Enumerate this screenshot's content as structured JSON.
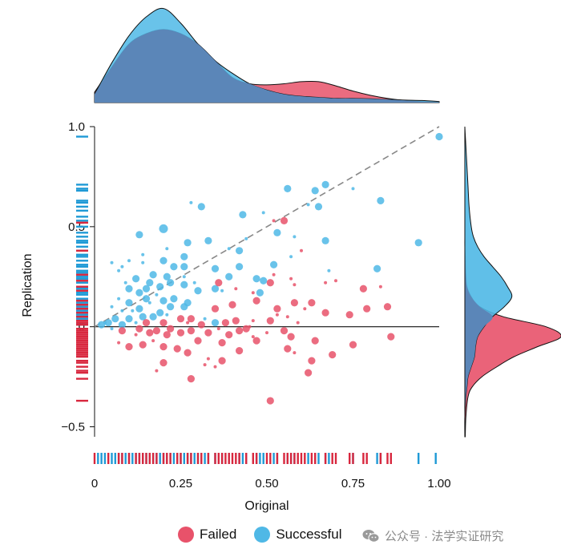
{
  "colors": {
    "failed": "#e8526a",
    "successful": "#4fb8e6",
    "overlap": "#5b86b8",
    "rug_failed": "#d8273e",
    "rug_successful": "#1f9ad6"
  },
  "legend": {
    "failed": "Failed",
    "successful": "Successful"
  },
  "watermark": {
    "icon": "wechat-icon",
    "text": "公众号 · 法学实证研究"
  },
  "chart_data": {
    "type": "scatter",
    "xlabel": "Original",
    "ylabel": "Replication",
    "xlim": [
      0,
      1
    ],
    "ylim": [
      -0.55,
      1.0
    ],
    "xticks": [
      {
        "value": 0,
        "label": "0"
      },
      {
        "value": 0.25,
        "label": "0.25"
      },
      {
        "value": 0.5,
        "label": "0.50"
      },
      {
        "value": 0.75,
        "label": "0.75"
      },
      {
        "value": 1,
        "label": "1.00"
      }
    ],
    "yticks": [
      {
        "value": -0.5,
        "label": "−0.5"
      },
      {
        "value": 0,
        "label": "0"
      },
      {
        "value": 0.5,
        "label": "0.5"
      },
      {
        "value": 1,
        "label": "1.0"
      }
    ],
    "reference_line": {
      "type": "identity",
      "style": "dashed",
      "from": [
        0,
        0
      ],
      "to": [
        1,
        1
      ]
    },
    "series": [
      {
        "name": "Successful",
        "points": [
          [
            1.0,
            0.95,
            6
          ],
          [
            0.67,
            0.71,
            6
          ],
          [
            0.64,
            0.68,
            5
          ],
          [
            0.56,
            0.69,
            6
          ],
          [
            0.83,
            0.63,
            6
          ],
          [
            0.75,
            0.69,
            3
          ],
          [
            0.62,
            0.61,
            3
          ],
          [
            0.65,
            0.6,
            2
          ],
          [
            0.31,
            0.6,
            6
          ],
          [
            0.28,
            0.62,
            3
          ],
          [
            0.49,
            0.57,
            3
          ],
          [
            0.43,
            0.56,
            6
          ],
          [
            0.2,
            0.49,
            7
          ],
          [
            0.13,
            0.46,
            6
          ],
          [
            0.27,
            0.42,
            6
          ],
          [
            0.94,
            0.42,
            6
          ],
          [
            0.67,
            0.43,
            6
          ],
          [
            0.58,
            0.45,
            3
          ],
          [
            0.53,
            0.47,
            6
          ],
          [
            0.44,
            0.44,
            3
          ],
          [
            0.42,
            0.38,
            6
          ],
          [
            0.33,
            0.43,
            6
          ],
          [
            0.39,
            0.39,
            3
          ],
          [
            0.26,
            0.35,
            6
          ],
          [
            0.21,
            0.39,
            3
          ],
          [
            0.14,
            0.36,
            3
          ],
          [
            0.08,
            0.3,
            3
          ],
          [
            0.1,
            0.33,
            3
          ],
          [
            0.05,
            0.32,
            3
          ],
          [
            0.2,
            0.33,
            6
          ],
          [
            0.14,
            0.32,
            3
          ],
          [
            0.23,
            0.3,
            6
          ],
          [
            0.26,
            0.3,
            6
          ],
          [
            0.35,
            0.29,
            6
          ],
          [
            0.42,
            0.3,
            6
          ],
          [
            0.47,
            0.24,
            6
          ],
          [
            0.52,
            0.31,
            6
          ],
          [
            0.39,
            0.25,
            6
          ],
          [
            0.17,
            0.26,
            6
          ],
          [
            0.21,
            0.25,
            6
          ],
          [
            0.26,
            0.25,
            3
          ],
          [
            0.12,
            0.24,
            6
          ],
          [
            0.16,
            0.22,
            6
          ],
          [
            0.19,
            0.2,
            6
          ],
          [
            0.22,
            0.22,
            6
          ],
          [
            0.26,
            0.21,
            6
          ],
          [
            0.29,
            0.22,
            3
          ],
          [
            0.3,
            0.18,
            6
          ],
          [
            0.35,
            0.19,
            6
          ],
          [
            0.37,
            0.18,
            3
          ],
          [
            0.49,
            0.23,
            6
          ],
          [
            0.48,
            0.17,
            6
          ],
          [
            0.1,
            0.19,
            6
          ],
          [
            0.13,
            0.17,
            6
          ],
          [
            0.15,
            0.19,
            6
          ],
          [
            0.18,
            0.16,
            3
          ],
          [
            0.2,
            0.13,
            6
          ],
          [
            0.23,
            0.14,
            6
          ],
          [
            0.27,
            0.12,
            6
          ],
          [
            0.07,
            0.14,
            3
          ],
          [
            0.1,
            0.12,
            6
          ],
          [
            0.15,
            0.14,
            6
          ],
          [
            0.16,
            0.12,
            3
          ],
          [
            0.22,
            0.1,
            6
          ],
          [
            0.26,
            0.1,
            6
          ],
          [
            0.05,
            0.1,
            3
          ],
          [
            0.08,
            0.08,
            3
          ],
          [
            0.11,
            0.08,
            3
          ],
          [
            0.13,
            0.09,
            6
          ],
          [
            0.19,
            0.07,
            6
          ],
          [
            0.21,
            0.06,
            3
          ],
          [
            0.17,
            0.05,
            6
          ],
          [
            0.14,
            0.05,
            6
          ],
          [
            0.1,
            0.04,
            6
          ],
          [
            0.06,
            0.04,
            6
          ],
          [
            0.04,
            0.02,
            6
          ],
          [
            0.02,
            0.01,
            6
          ],
          [
            0.08,
            0.01,
            6
          ],
          [
            0.12,
            0.02,
            3
          ],
          [
            0.05,
            -0.01,
            3
          ],
          [
            0.35,
            0.02,
            6
          ],
          [
            0.82,
            0.29,
            6
          ],
          [
            0.32,
            0.04,
            3
          ],
          [
            0.57,
            0.35,
            3
          ],
          [
            0.68,
            0.28,
            3
          ],
          [
            0.07,
            0.28,
            3
          ],
          [
            0.09,
            0.22,
            3
          ],
          [
            0.03,
            0.02,
            3
          ]
        ]
      },
      {
        "name": "Failed",
        "points": [
          [
            0.51,
            -0.37,
            6
          ],
          [
            0.28,
            -0.26,
            6
          ],
          [
            0.62,
            -0.23,
            6
          ],
          [
            0.2,
            -0.18,
            6
          ],
          [
            0.32,
            -0.19,
            3
          ],
          [
            0.37,
            -0.17,
            6
          ],
          [
            0.63,
            -0.17,
            6
          ],
          [
            0.69,
            -0.14,
            6
          ],
          [
            0.42,
            -0.12,
            6
          ],
          [
            0.56,
            -0.11,
            6
          ],
          [
            0.27,
            -0.13,
            6
          ],
          [
            0.24,
            -0.11,
            6
          ],
          [
            0.2,
            -0.1,
            6
          ],
          [
            0.14,
            -0.09,
            6
          ],
          [
            0.1,
            -0.1,
            6
          ],
          [
            0.07,
            -0.08,
            3
          ],
          [
            0.17,
            -0.07,
            3
          ],
          [
            0.3,
            -0.07,
            6
          ],
          [
            0.37,
            -0.08,
            6
          ],
          [
            0.47,
            -0.07,
            6
          ],
          [
            0.57,
            -0.05,
            6
          ],
          [
            0.64,
            -0.07,
            6
          ],
          [
            0.75,
            -0.09,
            6
          ],
          [
            0.86,
            -0.05,
            6
          ],
          [
            0.12,
            -0.04,
            3
          ],
          [
            0.16,
            -0.03,
            6
          ],
          [
            0.21,
            -0.04,
            6
          ],
          [
            0.25,
            -0.03,
            6
          ],
          [
            0.33,
            -0.03,
            6
          ],
          [
            0.39,
            -0.04,
            6
          ],
          [
            0.42,
            -0.02,
            6
          ],
          [
            0.46,
            -0.05,
            3
          ],
          [
            0.08,
            -0.02,
            6
          ],
          [
            0.13,
            -0.01,
            6
          ],
          [
            0.18,
            -0.02,
            6
          ],
          [
            0.22,
            -0.01,
            6
          ],
          [
            0.28,
            -0.02,
            6
          ],
          [
            0.36,
            -0.01,
            3
          ],
          [
            0.44,
            -0.01,
            6
          ],
          [
            0.5,
            -0.03,
            3
          ],
          [
            0.55,
            -0.02,
            6
          ],
          [
            0.59,
            0.02,
            3
          ],
          [
            0.15,
            0.02,
            6
          ],
          [
            0.2,
            0.02,
            6
          ],
          [
            0.27,
            0.02,
            3
          ],
          [
            0.31,
            0.01,
            6
          ],
          [
            0.38,
            0.02,
            6
          ],
          [
            0.41,
            0.03,
            6
          ],
          [
            0.46,
            0.03,
            3
          ],
          [
            0.51,
            0.03,
            6
          ],
          [
            0.53,
            0.09,
            6
          ],
          [
            0.58,
            0.12,
            6
          ],
          [
            0.61,
            0.09,
            3
          ],
          [
            0.63,
            0.12,
            6
          ],
          [
            0.67,
            0.07,
            6
          ],
          [
            0.74,
            0.06,
            6
          ],
          [
            0.79,
            0.09,
            6
          ],
          [
            0.85,
            0.1,
            6
          ],
          [
            0.53,
            0.06,
            3
          ],
          [
            0.56,
            0.05,
            3
          ],
          [
            0.35,
            0.09,
            6
          ],
          [
            0.4,
            0.11,
            6
          ],
          [
            0.47,
            0.13,
            6
          ],
          [
            0.36,
            0.22,
            6
          ],
          [
            0.41,
            0.19,
            3
          ],
          [
            0.46,
            0.17,
            3
          ],
          [
            0.51,
            0.22,
            6
          ],
          [
            0.57,
            0.24,
            3
          ],
          [
            0.7,
            0.23,
            3
          ],
          [
            0.78,
            0.19,
            6
          ],
          [
            0.83,
            0.2,
            3
          ],
          [
            0.52,
            0.26,
            3
          ],
          [
            0.6,
            0.38,
            3
          ],
          [
            0.55,
            0.53,
            6
          ],
          [
            0.52,
            0.53,
            3
          ],
          [
            0.25,
            0.04,
            6
          ],
          [
            0.28,
            0.04,
            6
          ],
          [
            0.33,
            -0.16,
            3
          ],
          [
            0.18,
            -0.22,
            3
          ],
          [
            0.35,
            -0.2,
            3
          ],
          [
            0.58,
            -0.13,
            3
          ],
          [
            0.67,
            0.22,
            3
          ],
          [
            0.58,
            0.21,
            3
          ],
          [
            0.45,
            0.0,
            3
          ]
        ]
      }
    ],
    "rug_x": {
      "Successful": [
        0.01,
        0.02,
        0.03,
        0.05,
        0.06,
        0.07,
        0.08,
        0.09,
        0.1,
        0.11,
        0.12,
        0.13,
        0.14,
        0.15,
        0.16,
        0.17,
        0.18,
        0.19,
        0.2,
        0.21,
        0.22,
        0.23,
        0.24,
        0.25,
        0.26,
        0.27,
        0.28,
        0.29,
        0.3,
        0.31,
        0.32,
        0.33,
        0.35,
        0.37,
        0.39,
        0.42,
        0.43,
        0.44,
        0.47,
        0.48,
        0.49,
        0.52,
        0.53,
        0.56,
        0.57,
        0.58,
        0.62,
        0.64,
        0.65,
        0.67,
        0.68,
        0.75,
        0.82,
        0.83,
        0.94,
        0.99
      ],
      "Failed": [
        0.0,
        0.04,
        0.07,
        0.08,
        0.1,
        0.12,
        0.13,
        0.14,
        0.15,
        0.16,
        0.17,
        0.18,
        0.2,
        0.21,
        0.22,
        0.24,
        0.25,
        0.27,
        0.28,
        0.3,
        0.31,
        0.33,
        0.35,
        0.36,
        0.37,
        0.38,
        0.39,
        0.4,
        0.41,
        0.42,
        0.44,
        0.46,
        0.47,
        0.5,
        0.51,
        0.53,
        0.55,
        0.56,
        0.57,
        0.58,
        0.59,
        0.6,
        0.61,
        0.63,
        0.64,
        0.67,
        0.69,
        0.7,
        0.74,
        0.75,
        0.78,
        0.79,
        0.83,
        0.85,
        0.86
      ]
    },
    "rug_y": {
      "Successful": [
        0.95,
        0.71,
        0.69,
        0.68,
        0.63,
        0.62,
        0.6,
        0.58,
        0.55,
        0.53,
        0.5,
        0.47,
        0.45,
        0.43,
        0.42,
        0.4,
        0.38,
        0.36,
        0.35,
        0.33,
        0.31,
        0.3,
        0.28,
        0.27,
        0.25,
        0.24,
        0.22,
        0.2,
        0.19,
        0.17,
        0.16,
        0.14,
        0.12,
        0.1,
        0.08,
        0.06,
        0.04,
        0.02,
        0.01
      ],
      "Failed": [
        0.52,
        0.38,
        0.26,
        0.23,
        0.2,
        0.18,
        0.13,
        0.11,
        0.09,
        0.07,
        0.05,
        0.03,
        0.02,
        0.01,
        -0.01,
        -0.02,
        -0.03,
        -0.04,
        -0.05,
        -0.06,
        -0.07,
        -0.08,
        -0.09,
        -0.1,
        -0.11,
        -0.12,
        -0.13,
        -0.14,
        -0.15,
        -0.17,
        -0.18,
        -0.2,
        -0.22,
        -0.23,
        -0.26,
        -0.37
      ]
    },
    "density_x": {
      "x": [
        0,
        0.05,
        0.1,
        0.15,
        0.2,
        0.25,
        0.3,
        0.35,
        0.4,
        0.45,
        0.5,
        0.55,
        0.6,
        0.65,
        0.7,
        0.75,
        0.8,
        0.85,
        0.9,
        0.95,
        1.0
      ],
      "Successful": [
        0.4,
        1.9,
        3.2,
        4.1,
        4.5,
        3.8,
        2.8,
        2.0,
        1.4,
        0.9,
        0.6,
        0.4,
        0.3,
        0.25,
        0.2,
        0.2,
        0.18,
        0.15,
        0.12,
        0.1,
        0.05
      ],
      "Failed": [
        0.5,
        1.7,
        2.8,
        3.3,
        3.5,
        3.3,
        2.8,
        2.0,
        1.2,
        0.9,
        0.85,
        0.9,
        1.0,
        1.0,
        0.8,
        0.55,
        0.35,
        0.2,
        0.1,
        0.05,
        0.02
      ]
    },
    "density_y": {
      "y": [
        -0.55,
        -0.45,
        -0.35,
        -0.3,
        -0.25,
        -0.2,
        -0.15,
        -0.1,
        -0.05,
        0.0,
        0.05,
        0.1,
        0.15,
        0.2,
        0.25,
        0.3,
        0.35,
        0.4,
        0.45,
        0.5,
        0.6,
        0.7,
        0.8,
        0.9,
        1.0
      ],
      "Successful": [
        0.0,
        0.0,
        0.05,
        0.1,
        0.15,
        0.3,
        0.45,
        0.5,
        0.6,
        0.9,
        1.3,
        1.85,
        2.2,
        2.0,
        1.7,
        1.3,
        0.9,
        0.6,
        0.4,
        0.3,
        0.2,
        0.15,
        0.1,
        0.05,
        0.0
      ],
      "Failed": [
        0.02,
        0.05,
        0.15,
        0.35,
        0.8,
        1.5,
        2.3,
        3.4,
        4.5,
        3.8,
        1.8,
        0.7,
        0.3,
        0.1,
        0.05,
        0.03,
        0.02,
        0.0,
        0.0,
        0.0,
        0.0,
        0.0,
        0.0,
        0.0,
        0.0
      ]
    }
  }
}
